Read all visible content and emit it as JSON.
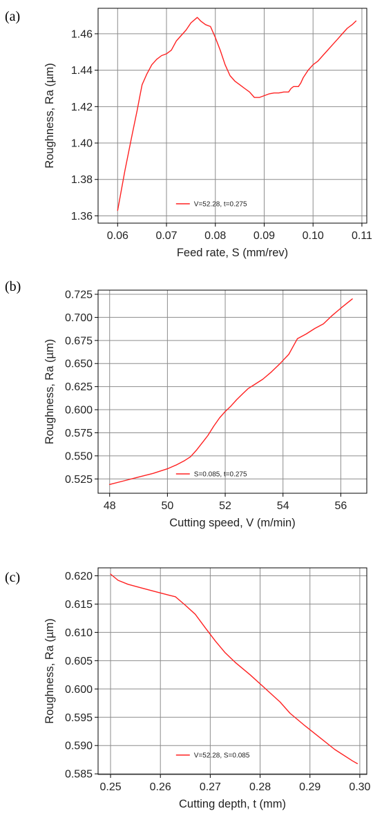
{
  "chart_data": [
    {
      "panel_label": "(a)",
      "type": "line",
      "xlabel": "Feed rate, S (mm/rev)",
      "ylabel": "Roughness, Ra (µm)",
      "xlim": [
        0.056,
        0.111
      ],
      "ylim": [
        1.356,
        1.474
      ],
      "xticks": [
        "0.06",
        "0.07",
        "0.08",
        "0.09",
        "0.10",
        "0.11"
      ],
      "yticks": [
        "1.36",
        "1.38",
        "1.40",
        "1.42",
        "1.44",
        "1.46"
      ],
      "grid": true,
      "legend_position": "bottom-center",
      "color": "#ff2020",
      "series": [
        {
          "name": "V=52.28, t=0.275",
          "x": [
            0.06,
            0.0615,
            0.063,
            0.064,
            0.0645,
            0.065,
            0.066,
            0.067,
            0.068,
            0.069,
            0.07,
            0.071,
            0.072,
            0.073,
            0.074,
            0.075,
            0.0763,
            0.077,
            0.078,
            0.079,
            0.08,
            0.081,
            0.082,
            0.083,
            0.084,
            0.085,
            0.086,
            0.087,
            0.088,
            0.089,
            0.09,
            0.091,
            0.092,
            0.093,
            0.094,
            0.095,
            0.0955,
            0.096,
            0.0965,
            0.097,
            0.0975,
            0.098,
            0.099,
            0.1,
            0.101,
            0.102,
            0.103,
            0.104,
            0.105,
            0.106,
            0.107,
            0.108,
            0.1088
          ],
          "y": [
            1.363,
            1.385,
            1.405,
            1.418,
            1.425,
            1.432,
            1.438,
            1.443,
            1.446,
            1.448,
            1.449,
            1.451,
            1.456,
            1.459,
            1.462,
            1.466,
            1.469,
            1.467,
            1.465,
            1.464,
            1.458,
            1.451,
            1.443,
            1.437,
            1.434,
            1.432,
            1.43,
            1.428,
            1.425,
            1.425,
            1.426,
            1.427,
            1.4275,
            1.4275,
            1.428,
            1.428,
            1.43,
            1.431,
            1.431,
            1.431,
            1.433,
            1.436,
            1.44,
            1.443,
            1.445,
            1.448,
            1.451,
            1.454,
            1.457,
            1.46,
            1.463,
            1.465,
            1.467
          ]
        }
      ]
    },
    {
      "panel_label": "(b)",
      "type": "line",
      "xlabel": "Cutting speed, V (m/min)",
      "ylabel": "Roughness, Ra (µm)",
      "xlim": [
        47.6,
        56.9
      ],
      "ylim": [
        0.5095,
        0.7295
      ],
      "xticks": [
        "48",
        "50",
        "52",
        "54",
        "56"
      ],
      "yticks": [
        "0.525",
        "0.550",
        "0.575",
        "0.600",
        "0.625",
        "0.650",
        "0.675",
        "0.700",
        "0.725"
      ],
      "grid": true,
      "legend_position": "bottom-center",
      "color": "#ff2020",
      "series": [
        {
          "name": "S=0.085, t=0.275",
          "x": [
            48.0,
            48.5,
            49.0,
            49.5,
            50.0,
            50.3,
            50.6,
            50.8,
            51.0,
            51.2,
            51.4,
            51.6,
            51.8,
            52.0,
            52.2,
            52.4,
            52.6,
            52.8,
            53.0,
            53.3,
            53.6,
            53.9,
            54.2,
            54.5,
            54.8,
            55.1,
            55.4,
            55.7,
            56.0,
            56.4
          ],
          "y": [
            0.519,
            0.523,
            0.527,
            0.531,
            0.536,
            0.54,
            0.545,
            0.549,
            0.556,
            0.564,
            0.572,
            0.582,
            0.591,
            0.598,
            0.604,
            0.611,
            0.617,
            0.623,
            0.627,
            0.633,
            0.641,
            0.65,
            0.66,
            0.677,
            0.682,
            0.688,
            0.693,
            0.702,
            0.71,
            0.72
          ]
        }
      ]
    },
    {
      "panel_label": "(c)",
      "type": "line",
      "xlabel": "Cutting depth,  t (mm)",
      "ylabel": "Roughness, Ra (µm)",
      "xlim": [
        0.2475,
        0.3014
      ],
      "ylim": [
        0.5849,
        0.6214
      ],
      "xticks": [
        "0.25",
        "0.26",
        "0.27",
        "0.28",
        "0.29",
        "0.30"
      ],
      "yticks": [
        "0.585",
        "0.590",
        "0.595",
        "0.600",
        "0.605",
        "0.610",
        "0.615",
        "0.620"
      ],
      "grid": true,
      "legend_position": "bottom-center",
      "color": "#ff2020",
      "series": [
        {
          "name": "V=52.28, S=0.085",
          "x": [
            0.25,
            0.2515,
            0.2535,
            0.256,
            0.259,
            0.262,
            0.263,
            0.265,
            0.267,
            0.269,
            0.271,
            0.273,
            0.275,
            0.278,
            0.281,
            0.284,
            0.286,
            0.289,
            0.292,
            0.295,
            0.2985,
            0.2995
          ],
          "y": [
            0.6203,
            0.6192,
            0.6185,
            0.6179,
            0.6172,
            0.6165,
            0.6163,
            0.6148,
            0.6132,
            0.6108,
            0.6085,
            0.6064,
            0.6047,
            0.6025,
            0.6001,
            0.5977,
            0.5957,
            0.5935,
            0.5914,
            0.5893,
            0.5873,
            0.5868
          ]
        }
      ]
    }
  ]
}
